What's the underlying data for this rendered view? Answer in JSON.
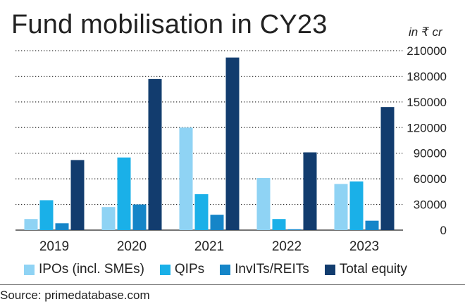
{
  "header": {
    "title": "Fund mobilisation in CY23",
    "unit": "in ₹ cr"
  },
  "source": "Source: primedatabase.com",
  "chart_data": {
    "type": "bar",
    "categories": [
      "2019",
      "2020",
      "2021",
      "2022",
      "2023"
    ],
    "series": [
      {
        "name": "IPOs (incl. SMEs)",
        "color": "#8fd3f4",
        "values": [
          13000,
          27000,
          120000,
          61000,
          54000
        ]
      },
      {
        "name": "QIPs",
        "color": "#1ab0e8",
        "values": [
          35000,
          85000,
          42000,
          13000,
          57000
        ]
      },
      {
        "name": "InvITs/REITs",
        "color": "#1585c8",
        "values": [
          8000,
          30000,
          18000,
          1000,
          11000
        ]
      },
      {
        "name": "Total equity",
        "color": "#123c6e",
        "values": [
          82000,
          177000,
          202000,
          91000,
          144000
        ]
      }
    ],
    "yticks": [
      "0",
      "30000",
      "60000",
      "90000",
      "120000",
      "150000",
      "180000",
      "210000"
    ],
    "ylim": [
      0,
      210000
    ],
    "grid": "dotted horizontal",
    "legend": "bottom",
    "xlabel": "",
    "ylabel": ""
  }
}
